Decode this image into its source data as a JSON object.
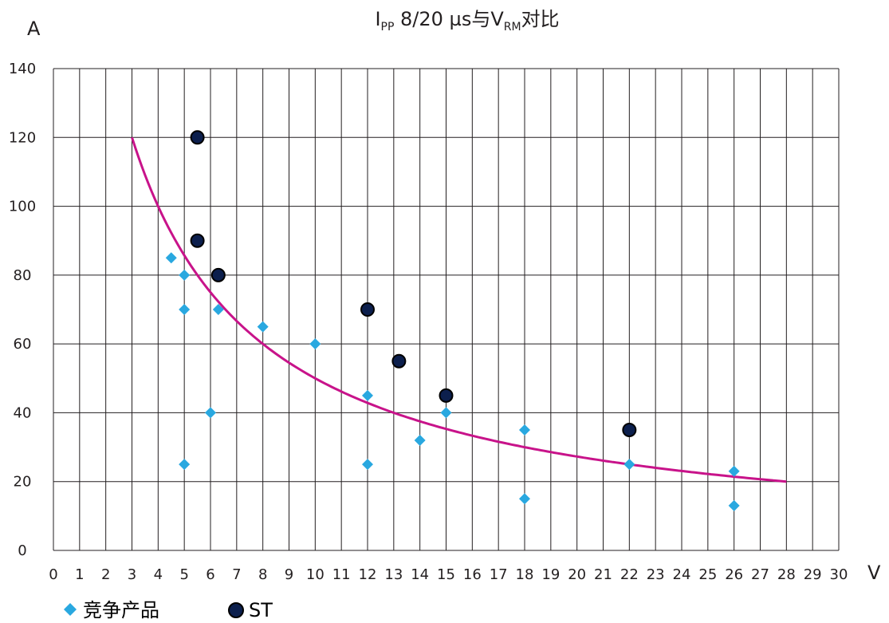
{
  "chart_data": {
    "type": "scatter",
    "title": {
      "prefix": "I",
      "prefix_sub": "PP",
      "middle": " 8/20 µs与V",
      "middle_sub": "RM",
      "suffix": "对比"
    },
    "xlabel": "V",
    "ylabel": "A",
    "xlim": [
      0,
      30
    ],
    "ylim": [
      0,
      140
    ],
    "x_ticks": [
      "0",
      "1",
      "2",
      "3",
      "4",
      "5",
      "6",
      "7",
      "8",
      "9",
      "10",
      "11",
      "12",
      "13",
      "14",
      "15",
      "16",
      "17",
      "18",
      "19",
      "20",
      "21",
      "22",
      "23",
      "24",
      "25",
      "26",
      "27",
      "28",
      "29",
      "30"
    ],
    "y_ticks": [
      "0",
      "20",
      "40",
      "60",
      "80",
      "100",
      "120",
      "140"
    ],
    "x_tick_values": [
      0,
      1,
      2,
      3,
      4,
      5,
      6,
      7,
      8,
      9,
      10,
      11,
      12,
      13,
      14,
      15,
      16,
      17,
      18,
      19,
      20,
      21,
      22,
      23,
      24,
      25,
      26,
      27,
      28,
      29,
      30
    ],
    "y_tick_values": [
      0,
      20,
      40,
      60,
      80,
      100,
      120,
      140
    ],
    "grid": true,
    "legend_position": "bottom-left",
    "series": [
      {
        "name": "竞争产品",
        "marker": "diamond",
        "color": "#29a8e0",
        "points": [
          [
            4.5,
            85
          ],
          [
            5,
            80
          ],
          [
            5,
            70
          ],
          [
            5,
            25
          ],
          [
            6,
            40
          ],
          [
            6.3,
            70
          ],
          [
            8,
            65
          ],
          [
            10,
            60
          ],
          [
            12,
            45
          ],
          [
            12,
            25
          ],
          [
            14,
            32
          ],
          [
            15,
            40
          ],
          [
            18,
            35
          ],
          [
            18,
            15
          ],
          [
            22,
            25
          ],
          [
            26,
            23
          ],
          [
            26,
            13
          ]
        ]
      },
      {
        "name": "ST",
        "marker": "circle",
        "color": "#0c1f4d",
        "points": [
          [
            5.5,
            120
          ],
          [
            5.5,
            90
          ],
          [
            6.3,
            80
          ],
          [
            12,
            70
          ],
          [
            13.2,
            55
          ],
          [
            15,
            45
          ],
          [
            22,
            35
          ]
        ]
      }
    ],
    "trendline": {
      "color": "#c8138a",
      "x_from": 3,
      "x_to": 28,
      "formula": "y = 600 / (x + 2)"
    }
  }
}
